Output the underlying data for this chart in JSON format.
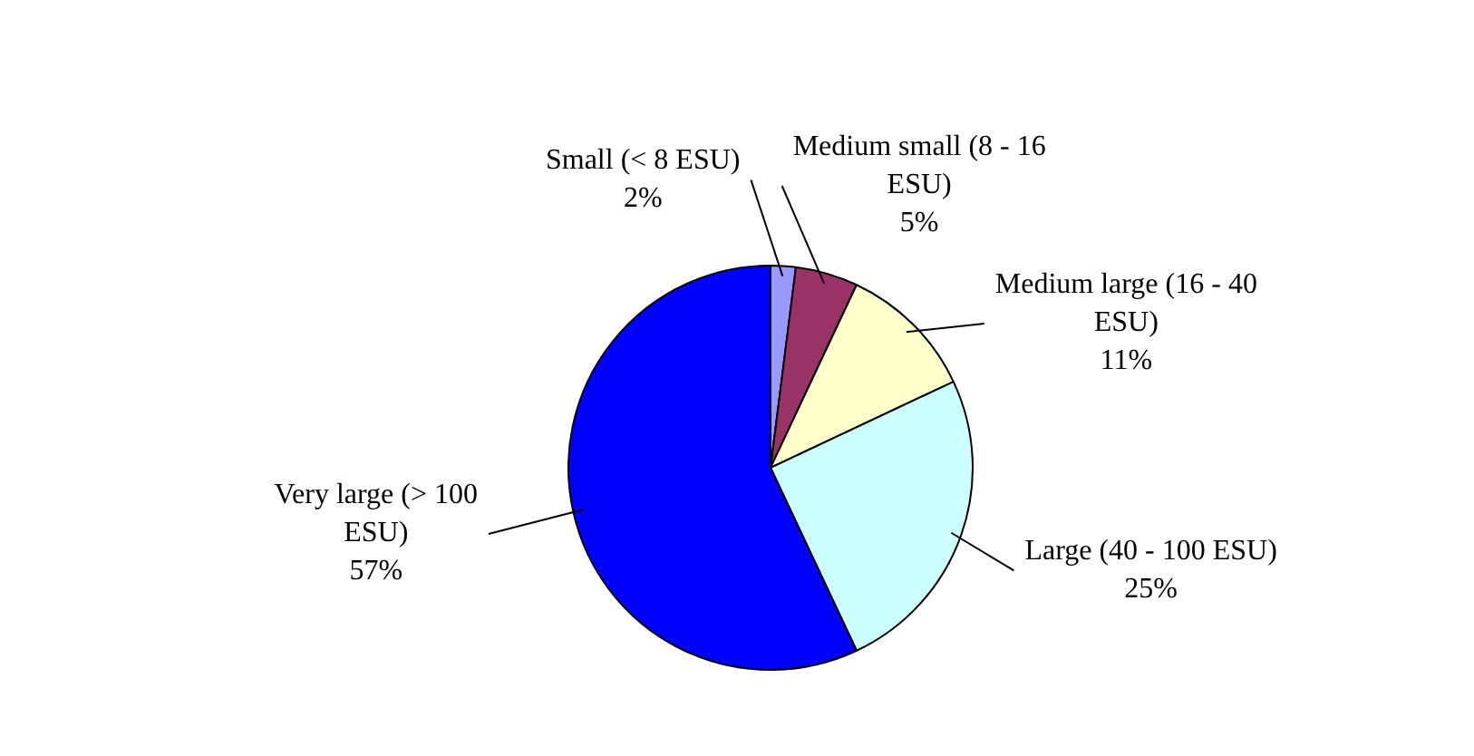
{
  "chart_data": {
    "type": "pie",
    "categories": [
      "Small (< 8 ESU)",
      "Medium small (8 - 16 ESU)",
      "Medium large (16 - 40 ESU)",
      "Large (40 - 100 ESU)",
      "Very large (> 100 ESU)"
    ],
    "values": [
      2,
      5,
      11,
      25,
      57
    ],
    "value_labels": [
      "2%",
      "5%",
      "11%",
      "25%",
      "57%"
    ],
    "colors": [
      "#9999ff",
      "#993366",
      "#ffffcc",
      "#ccffff",
      "#0000ff"
    ],
    "legend": false
  }
}
